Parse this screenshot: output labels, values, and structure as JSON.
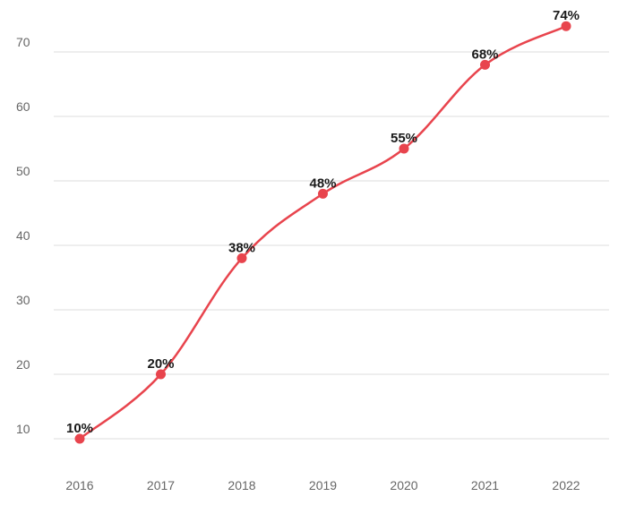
{
  "chart_data": {
    "type": "line",
    "categories": [
      "2016",
      "2017",
      "2018",
      "2019",
      "2020",
      "2021",
      "2022"
    ],
    "series": [
      {
        "values": [
          10,
          20,
          38,
          48,
          55,
          68,
          74
        ],
        "labels": [
          "10%",
          "20%",
          "38%",
          "48%",
          "55%",
          "68%",
          "74%"
        ]
      }
    ],
    "y_ticks": [
      10,
      20,
      30,
      40,
      50,
      60,
      70
    ],
    "ylim": [
      10,
      70
    ],
    "grid": true,
    "smooth": true,
    "colors": {
      "line": "#e8444d",
      "grid": "#dddddd",
      "tick_text": "#666666",
      "label_text": "#1a1a1a"
    }
  }
}
